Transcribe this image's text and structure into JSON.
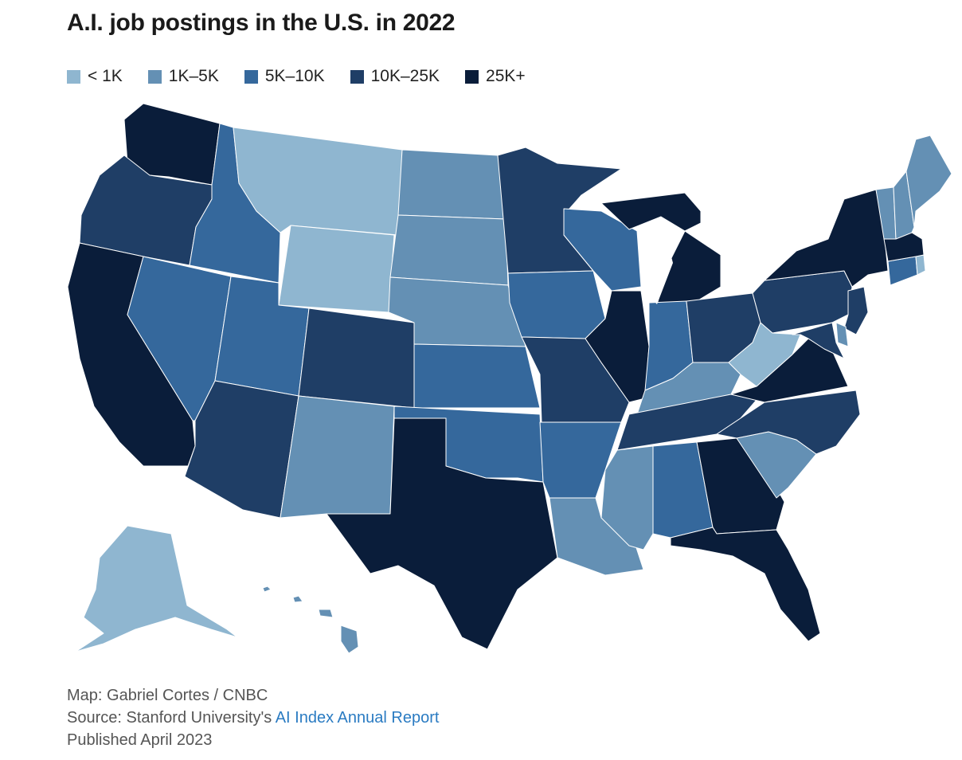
{
  "title": "A.I. job postings in the U.S. in 2022",
  "colors": {
    "lt1k": "#8fb6d0",
    "k1_5": "#6490b4",
    "k5_10": "#35689c",
    "k10_25": "#1f3e66",
    "k25plus": "#0a1d3a"
  },
  "legend": [
    {
      "key": "lt1k",
      "label": "< 1K"
    },
    {
      "key": "k1_5",
      "label": "1K–5K"
    },
    {
      "key": "k5_10",
      "label": "5K–10K"
    },
    {
      "key": "k10_25",
      "label": "10K–25K"
    },
    {
      "key": "k25plus",
      "label": "25K+"
    }
  ],
  "state_bins": {
    "WA": "k25plus",
    "OR": "k10_25",
    "CA": "k25plus",
    "ID": "k5_10",
    "NV": "k5_10",
    "MT": "lt1k",
    "WY": "lt1k",
    "UT": "k5_10",
    "AZ": "k10_25",
    "CO": "k10_25",
    "NM": "k1_5",
    "ND": "k1_5",
    "SD": "k1_5",
    "NE": "k1_5",
    "KS": "k5_10",
    "OK": "k5_10",
    "TX": "k25plus",
    "MN": "k10_25",
    "IA": "k5_10",
    "MO": "k10_25",
    "AR": "k5_10",
    "LA": "k1_5",
    "WI": "k5_10",
    "IL": "k25plus",
    "MI": "k25plus",
    "IN": "k5_10",
    "OH": "k10_25",
    "KY": "k1_5",
    "TN": "k10_25",
    "MS": "k1_5",
    "AL": "k5_10",
    "GA": "k25plus",
    "FL": "k25plus",
    "SC": "k1_5",
    "NC": "k10_25",
    "VA": "k25plus",
    "WV": "lt1k",
    "PA": "k10_25",
    "NY": "k25plus",
    "NJ": "k10_25",
    "DE": "k1_5",
    "MD": "k10_25",
    "CT": "k5_10",
    "RI": "lt1k",
    "MA": "k25plus",
    "VT": "k1_5",
    "NH": "k1_5",
    "ME": "k1_5",
    "AK": "lt1k",
    "HI": "k1_5"
  },
  "footer": {
    "map_credit": "Map: Gabriel Cortes / CNBC",
    "source_prefix": "Source: Stanford University's ",
    "source_link": "AI Index Annual Report",
    "published": "Published April 2023"
  }
}
